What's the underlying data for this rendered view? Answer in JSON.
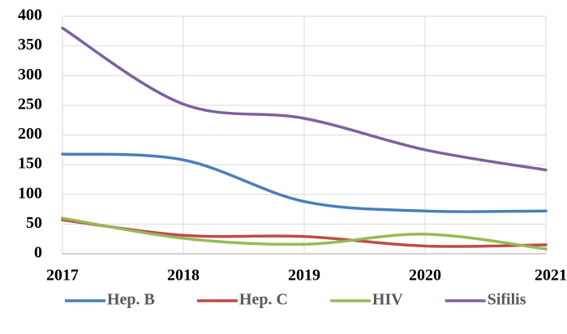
{
  "chart_data": {
    "type": "line",
    "x": [
      2017,
      2018,
      2019,
      2020,
      2021
    ],
    "xlim": [
      2017,
      2021
    ],
    "xticks": [
      2017,
      2018,
      2019,
      2020,
      2021
    ],
    "ylim": [
      0,
      400
    ],
    "yticks": [
      0,
      50,
      100,
      150,
      200,
      250,
      300,
      350,
      400
    ],
    "grid": true,
    "smooth": true,
    "legend": "bottom",
    "series": [
      {
        "name": "Hep. B",
        "color": "#4a7ebb",
        "values": [
          168,
          158,
          88,
          72,
          72
        ]
      },
      {
        "name": "Hep. C",
        "color": "#be4b48",
        "values": [
          57,
          31,
          29,
          13,
          15
        ]
      },
      {
        "name": "HIV",
        "color": "#98b954",
        "values": [
          60,
          26,
          16,
          33,
          8
        ]
      },
      {
        "name": "Sifilis",
        "color": "#7d60a0",
        "values": [
          380,
          252,
          228,
          175,
          141
        ]
      }
    ]
  }
}
